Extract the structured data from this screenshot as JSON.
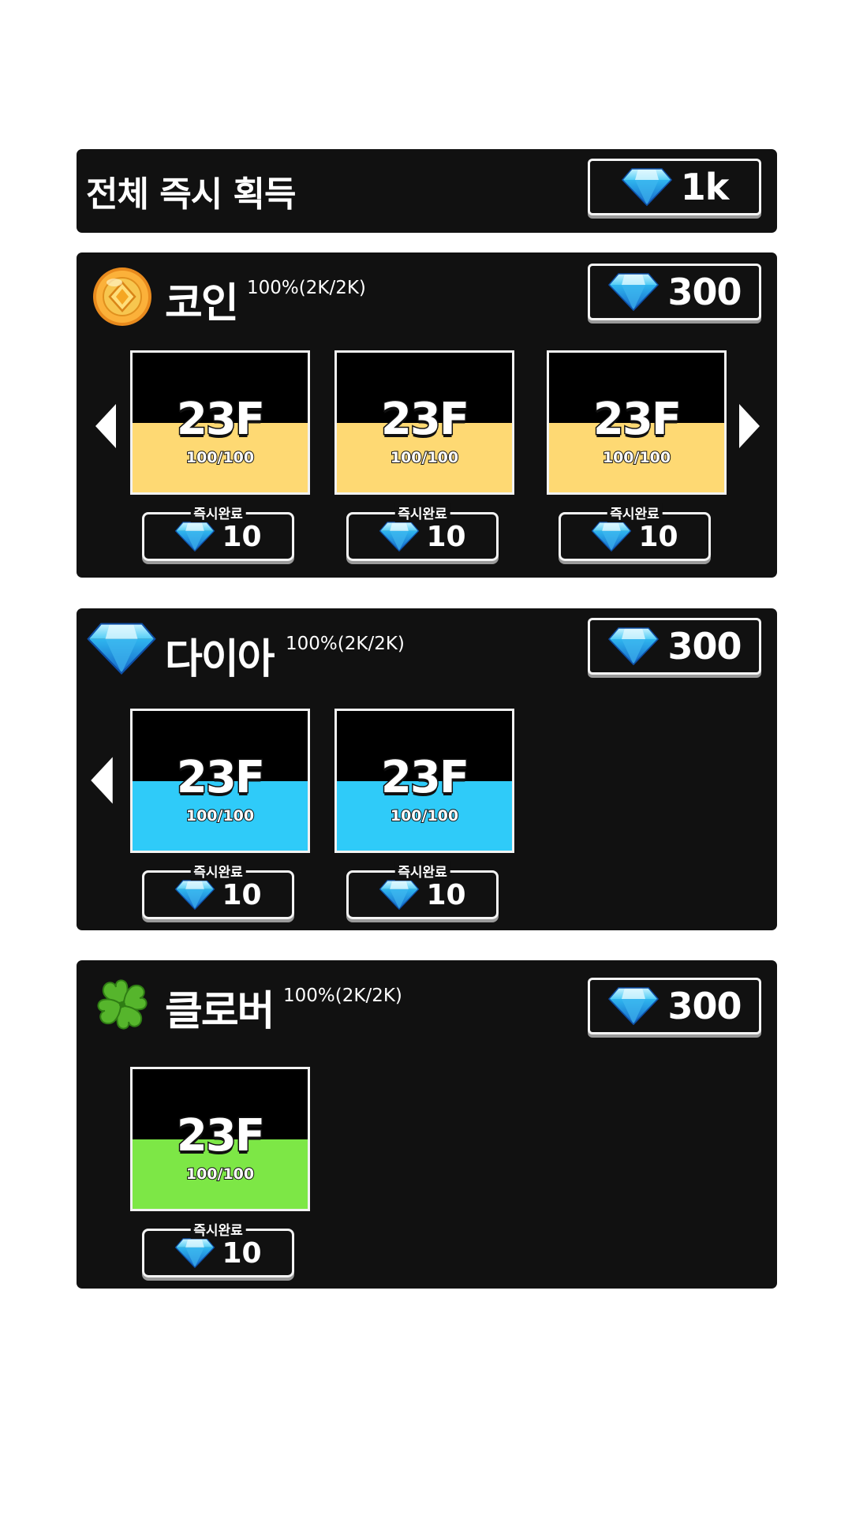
{
  "colors": {
    "panel_bg": "#111111",
    "coin_fill": "#fed973",
    "diamond_fill": "#2fcbf9",
    "clover_fill": "#7de746"
  },
  "top": {
    "title": "전체 즉시 획득",
    "price": "1k",
    "price_icon": "diamond-icon"
  },
  "sections": [
    {
      "title": "코인",
      "percent": "100%(2K/2K)",
      "icon": "coin-icon",
      "price": "300",
      "cards": [
        {
          "floor": "23F",
          "count": "100/100",
          "fill_percent": 50,
          "instant_label": "즉시완료",
          "cost": "10"
        },
        {
          "floor": "23F",
          "count": "100/100",
          "fill_percent": 50,
          "instant_label": "즉시완료",
          "cost": "10"
        },
        {
          "floor": "23F",
          "count": "100/100",
          "fill_percent": 50,
          "instant_label": "즉시완료",
          "cost": "10"
        }
      ]
    },
    {
      "title": "다이아",
      "percent": "100%(2K/2K)",
      "icon": "diamond-icon",
      "price": "300",
      "cards": [
        {
          "floor": "23F",
          "count": "100/100",
          "fill_percent": 50,
          "instant_label": "즉시완료",
          "cost": "10"
        },
        {
          "floor": "23F",
          "count": "100/100",
          "fill_percent": 50,
          "instant_label": "즉시완료",
          "cost": "10"
        }
      ]
    },
    {
      "title": "클로버",
      "percent": "100%(2K/2K)",
      "icon": "clover-icon",
      "price": "300",
      "cards": [
        {
          "floor": "23F",
          "count": "100/100",
          "fill_percent": 50,
          "instant_label": "즉시완료",
          "cost": "10"
        }
      ]
    }
  ]
}
